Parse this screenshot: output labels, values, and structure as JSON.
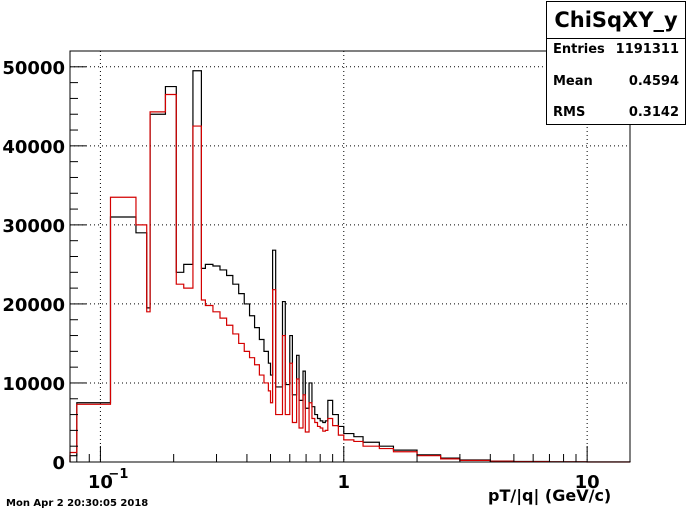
{
  "stats_box": {
    "title": "ChiSqXY_y",
    "entries_label": "Entries",
    "entries_value": "1191311",
    "mean_label": "Mean",
    "mean_value": "0.4594",
    "rms_label": "RMS",
    "rms_value": "0.3142"
  },
  "footer": {
    "datestamp": "Mon Apr  2 20:30:05 2018"
  },
  "colors": {
    "series_black": "#000000",
    "series_red": "#d40000",
    "grid": "#000000"
  },
  "chart_data": {
    "type": "line",
    "title": "",
    "xlabel": "pT/|q| (GeV/c)",
    "ylabel": "",
    "x_scale": "log",
    "xlim": [
      0.075,
      15
    ],
    "ylim": [
      0,
      52000
    ],
    "x_tick_labels": [
      {
        "value": 0.1,
        "label": "10",
        "exponent": "−1"
      },
      {
        "value": 1,
        "label": "1",
        "exponent": ""
      },
      {
        "value": 10,
        "label": "10",
        "exponent": ""
      }
    ],
    "y_tick_labels": [
      {
        "value": 0,
        "label": "0"
      },
      {
        "value": 10000,
        "label": "10000"
      },
      {
        "value": 20000,
        "label": "20000"
      },
      {
        "value": 30000,
        "label": "30000"
      },
      {
        "value": 40000,
        "label": "40000"
      },
      {
        "value": 50000,
        "label": "50000"
      }
    ],
    "grid": true,
    "legend": "none",
    "series": [
      {
        "color": "#000000",
        "points": [
          [
            0.075,
            800
          ],
          [
            0.08,
            7500
          ],
          [
            0.11,
            31000
          ],
          [
            0.14,
            29000
          ],
          [
            0.155,
            19500
          ],
          [
            0.16,
            44000
          ],
          [
            0.185,
            47500
          ],
          [
            0.205,
            24000
          ],
          [
            0.22,
            25000
          ],
          [
            0.24,
            49500
          ],
          [
            0.26,
            24500
          ],
          [
            0.27,
            25000
          ],
          [
            0.29,
            24800
          ],
          [
            0.31,
            24300
          ],
          [
            0.33,
            23600
          ],
          [
            0.35,
            22500
          ],
          [
            0.37,
            21300
          ],
          [
            0.39,
            20000
          ],
          [
            0.41,
            18500
          ],
          [
            0.43,
            17000
          ],
          [
            0.45,
            15500
          ],
          [
            0.47,
            14000
          ],
          [
            0.49,
            12500
          ],
          [
            0.5,
            11000
          ],
          [
            0.51,
            26800
          ],
          [
            0.525,
            9500
          ],
          [
            0.56,
            20300
          ],
          [
            0.575,
            9800
          ],
          [
            0.6,
            16000
          ],
          [
            0.615,
            8500
          ],
          [
            0.64,
            13500
          ],
          [
            0.655,
            7800
          ],
          [
            0.68,
            11500
          ],
          [
            0.695,
            6800
          ],
          [
            0.72,
            10000
          ],
          [
            0.74,
            7000
          ],
          [
            0.76,
            6000
          ],
          [
            0.78,
            5500
          ],
          [
            0.8,
            5200
          ],
          [
            0.82,
            5000
          ],
          [
            0.84,
            5200
          ],
          [
            0.86,
            7800
          ],
          [
            0.9,
            6000
          ],
          [
            0.95,
            4500
          ],
          [
            1.0,
            3600
          ],
          [
            1.1,
            3200
          ],
          [
            1.2,
            2500
          ],
          [
            1.4,
            2000
          ],
          [
            1.6,
            1500
          ],
          [
            2.0,
            900
          ],
          [
            2.5,
            500
          ],
          [
            3.0,
            250
          ],
          [
            4.0,
            120
          ],
          [
            5.0,
            60
          ],
          [
            7.0,
            20
          ],
          [
            10,
            5
          ],
          [
            15,
            0
          ]
        ]
      },
      {
        "color": "#d40000",
        "points": [
          [
            0.075,
            1200
          ],
          [
            0.08,
            7300
          ],
          [
            0.11,
            33500
          ],
          [
            0.14,
            30000
          ],
          [
            0.155,
            19000
          ],
          [
            0.16,
            44300
          ],
          [
            0.185,
            46500
          ],
          [
            0.205,
            22500
          ],
          [
            0.22,
            22000
          ],
          [
            0.24,
            42500
          ],
          [
            0.26,
            20500
          ],
          [
            0.27,
            19800
          ],
          [
            0.29,
            19000
          ],
          [
            0.31,
            18200
          ],
          [
            0.33,
            17300
          ],
          [
            0.35,
            16200
          ],
          [
            0.37,
            15000
          ],
          [
            0.39,
            14000
          ],
          [
            0.41,
            13200
          ],
          [
            0.43,
            12300
          ],
          [
            0.45,
            11000
          ],
          [
            0.47,
            10000
          ],
          [
            0.49,
            9000
          ],
          [
            0.5,
            7500
          ],
          [
            0.51,
            21800
          ],
          [
            0.525,
            6000
          ],
          [
            0.56,
            16000
          ],
          [
            0.575,
            6000
          ],
          [
            0.6,
            12500
          ],
          [
            0.615,
            5000
          ],
          [
            0.64,
            10500
          ],
          [
            0.655,
            4300
          ],
          [
            0.68,
            8500
          ],
          [
            0.695,
            3800
          ],
          [
            0.72,
            7500
          ],
          [
            0.74,
            5500
          ],
          [
            0.76,
            5000
          ],
          [
            0.78,
            4500
          ],
          [
            0.8,
            4300
          ],
          [
            0.82,
            3900
          ],
          [
            0.84,
            4000
          ],
          [
            0.86,
            5500
          ],
          [
            0.9,
            4600
          ],
          [
            0.95,
            3400
          ],
          [
            1.0,
            2800
          ],
          [
            1.1,
            2600
          ],
          [
            1.2,
            2000
          ],
          [
            1.4,
            1700
          ],
          [
            1.6,
            1300
          ],
          [
            2.0,
            800
          ],
          [
            2.5,
            400
          ],
          [
            3.0,
            200
          ],
          [
            4.0,
            100
          ],
          [
            5.0,
            50
          ],
          [
            7.0,
            15
          ],
          [
            10,
            4
          ],
          [
            15,
            0
          ]
        ]
      }
    ]
  }
}
